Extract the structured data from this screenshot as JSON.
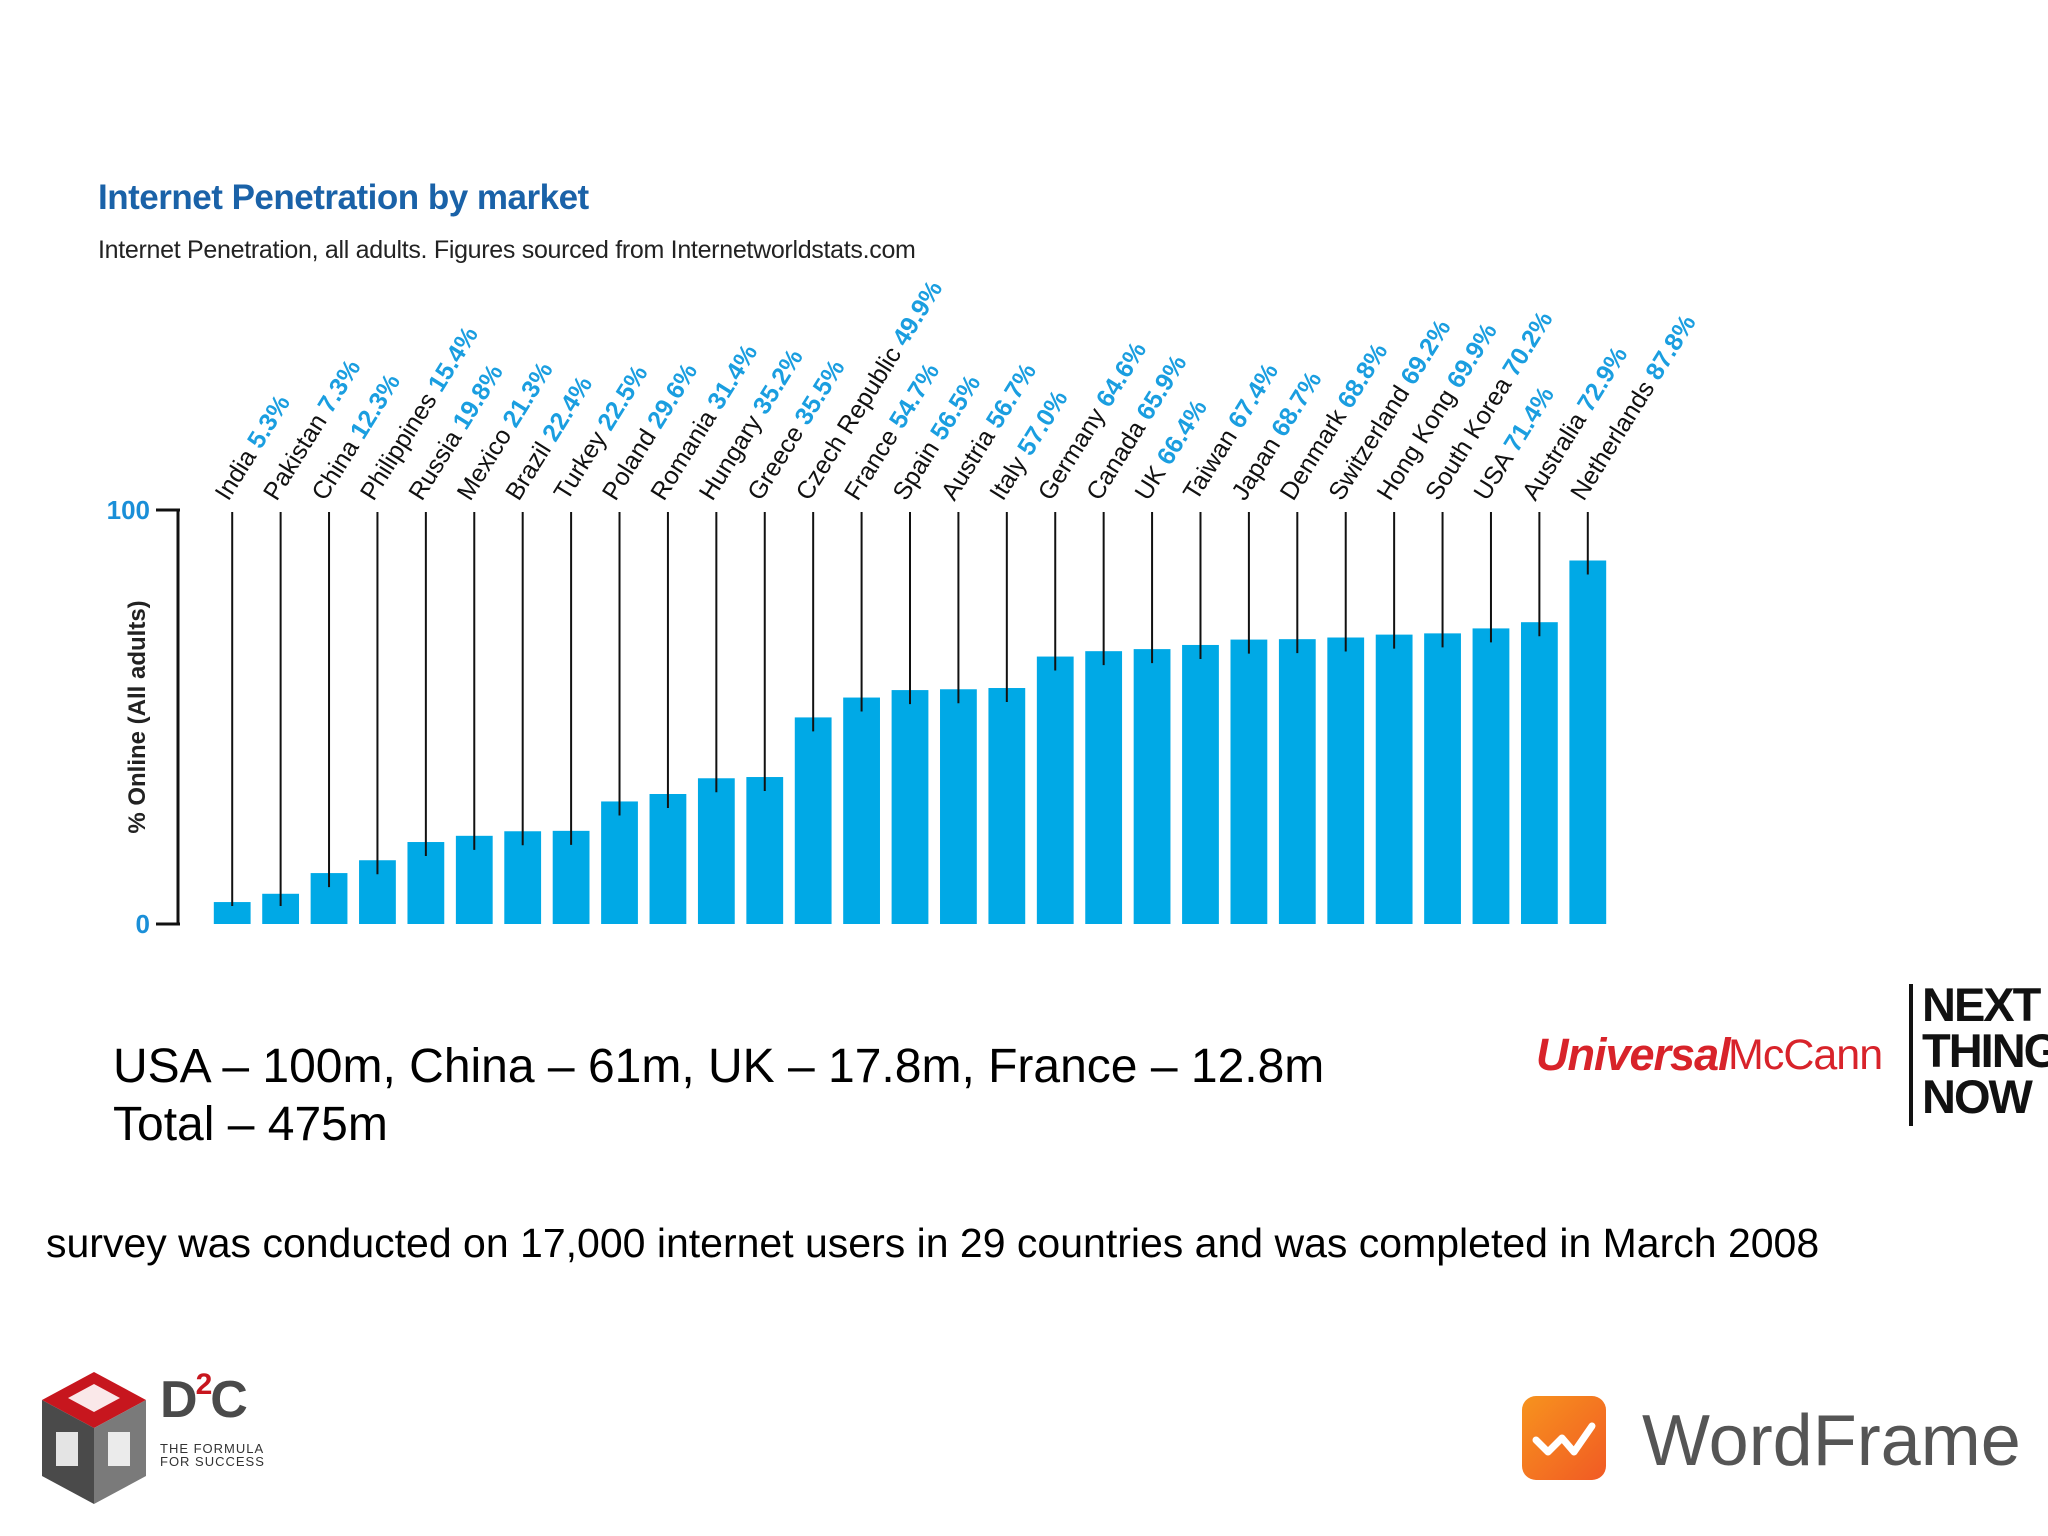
{
  "chart_data": {
    "type": "bar",
    "title": "Internet Penetration by market",
    "subtitle": "Internet Penetration, all adults. Figures sourced from Internetworldstats.com",
    "ylabel": "% Online (All adults)",
    "ylim": [
      0,
      100
    ],
    "yticks": [
      "0",
      "100"
    ],
    "bar_color": "#00a9e6",
    "categories": [
      "India",
      "Pakistan",
      "China",
      "Philippines",
      "Russia",
      "Mexico",
      "Brazil",
      "Turkey",
      "Poland",
      "Romania",
      "Hungary",
      "Greece",
      "Czech Republic",
      "France",
      "Spain",
      "Austria",
      "Italy",
      "Germany",
      "Canada",
      "UK",
      "Taiwan",
      "Japan",
      "Denmark",
      "Switzerland",
      "Hong Kong",
      "South Korea",
      "USA",
      "Australia",
      "Netherlands"
    ],
    "values": [
      5.3,
      7.3,
      12.3,
      15.4,
      19.8,
      21.3,
      22.4,
      22.5,
      29.6,
      31.4,
      35.2,
      35.5,
      49.9,
      54.7,
      56.5,
      56.7,
      57.0,
      64.6,
      65.9,
      66.4,
      67.4,
      68.7,
      68.8,
      69.2,
      69.9,
      70.2,
      71.4,
      72.9,
      87.8
    ],
    "value_labels": [
      "5.3%",
      "7.3%",
      "12.3%",
      "15.4%",
      "19.8%",
      "21.3%",
      "22.4%",
      "22.5%",
      "29.6%",
      "31.4%",
      "35.2%",
      "35.5%",
      "49.9%",
      "54.7%",
      "56.5%",
      "56.7%",
      "57.0%",
      "64.6%",
      "65.9%",
      "66.4%",
      "67.4%",
      "68.7%",
      "68.8%",
      "69.2%",
      "69.9%",
      "70.2%",
      "71.4%",
      "72.9%",
      "87.8%"
    ]
  },
  "summary": {
    "line1": "USA – 100m, China – 61m, UK – 17.8m, France – 12.8m",
    "line2": "Total – 475m"
  },
  "survey_note": "survey was conducted on 17,000 internet users in 29 countries and was completed in March 2008",
  "logos": {
    "universal_mccann": {
      "brand_bold": "Universal",
      "brand_light": "McCann",
      "tagline": [
        "NEXT",
        "THING",
        "NOW"
      ]
    },
    "d2c": {
      "name": "D",
      "sup": "2",
      "name_end": "C",
      "tagline": [
        "THE FORMULA",
        "FOR SUCCESS"
      ]
    },
    "wordframe": {
      "name": "WordFrame",
      "icon": "wave-chart-icon"
    }
  }
}
